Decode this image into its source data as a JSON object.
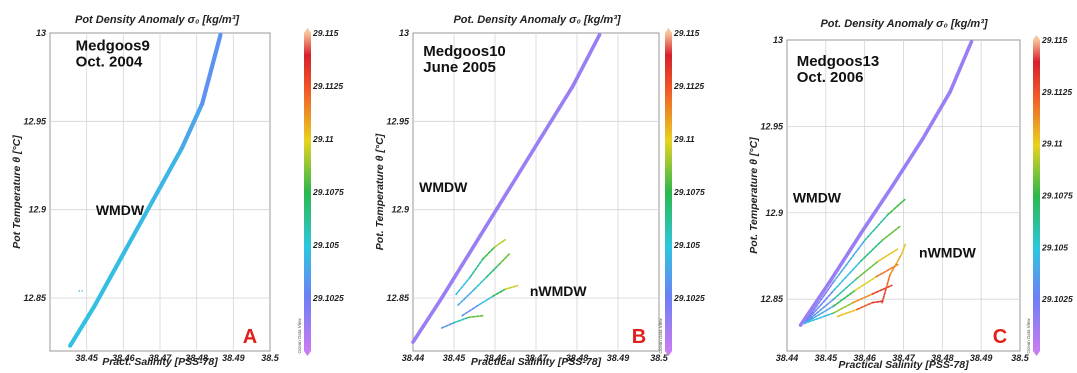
{
  "chart_data": [
    {
      "type": "scatter",
      "panel_letter": "A",
      "title": "Pot Density Anomaly σ₀ [kg/m³]",
      "xlabel": "Pract. Salinity [PSS-78]",
      "ylabel": "Pot Temperature θ [°C]",
      "xlim": [
        38.44,
        38.5
      ],
      "ylim": [
        12.82,
        13
      ],
      "xticks": [
        "38.45",
        "38.46",
        "38.47",
        "38.48",
        "38.49",
        "38.5"
      ],
      "yticks": [
        "12.85",
        "12.9",
        "12.95",
        "13"
      ],
      "grid": true,
      "colorbar": {
        "min": 29.1,
        "max": 29.115,
        "ticks": [
          "29.1025",
          "29.105",
          "29.1075",
          "29.11",
          "29.1125",
          "29.115"
        ],
        "watermark": "Ocean Data View"
      },
      "annotations": [
        {
          "text": "Medgoos9\nOct. 2004",
          "x": 38.447,
          "y": 12.99
        },
        {
          "text": "WMDW",
          "x": 38.4525,
          "y": 12.897
        }
      ],
      "series": [
        {
          "kind": "line",
          "values_x": [
            38.4455,
            38.452,
            38.46,
            38.468,
            38.476,
            38.4815,
            38.4865
          ],
          "values_y": [
            12.823,
            12.845,
            12.875,
            12.905,
            12.935,
            12.96,
            12.999
          ],
          "sigma": [
            29.1048,
            29.1047,
            29.1046,
            29.1045,
            29.1042,
            29.1035,
            29.1028
          ]
        },
        {
          "kind": "points",
          "values_x": [
            38.448,
            38.4488
          ],
          "values_y": [
            12.854,
            12.854
          ],
          "sigma": [
            29.1045,
            29.1045
          ]
        }
      ]
    },
    {
      "type": "scatter",
      "panel_letter": "B",
      "title": "Pot. Density Anomaly σ₀ [kg/m³]",
      "xlabel": "Practical Salinity [PSS-78]",
      "ylabel": "Pot. Temperature θ [°C]",
      "xlim": [
        38.44,
        38.5
      ],
      "ylim": [
        12.82,
        13
      ],
      "xticks": [
        "38.44",
        "38.45",
        "38.46",
        "38.47",
        "38.48",
        "38.49",
        "38.5"
      ],
      "yticks": [
        "12.85",
        "12.9",
        "12.95",
        "13"
      ],
      "grid": true,
      "colorbar": {
        "min": 29.1,
        "max": 29.115,
        "ticks": [
          "29.1025",
          "29.105",
          "29.1075",
          "29.11",
          "29.1125",
          "29.115"
        ],
        "watermark": "Ocean Data View"
      },
      "annotations": [
        {
          "text": "Medgoos10\nJune 2005",
          "x": 38.4425,
          "y": 12.987
        },
        {
          "text": "WMDW",
          "x": 38.4415,
          "y": 12.91
        },
        {
          "text": "nWMDW",
          "x": 38.4685,
          "y": 12.851
        }
      ],
      "series": [
        {
          "kind": "line",
          "values_x": [
            38.44,
            38.447,
            38.455,
            38.463,
            38.471,
            38.479,
            38.4855
          ],
          "values_y": [
            12.825,
            12.85,
            12.88,
            12.91,
            12.94,
            12.97,
            12.999
          ],
          "sigma": [
            29.1013,
            29.1013,
            29.1013,
            29.1013,
            29.1013,
            29.1013,
            29.1013
          ]
        },
        {
          "kind": "curve",
          "values_x": [
            38.4505,
            38.454,
            38.457,
            38.46,
            38.4625
          ],
          "values_y": [
            12.852,
            12.862,
            12.872,
            12.879,
            12.883
          ],
          "sigma": [
            29.1038,
            29.1055,
            29.107,
            29.1085,
            29.11
          ]
        },
        {
          "kind": "curve",
          "values_x": [
            38.451,
            38.455,
            38.458,
            38.461,
            38.4635
          ],
          "values_y": [
            12.846,
            12.855,
            12.862,
            12.869,
            12.875
          ],
          "sigma": [
            29.103,
            29.1048,
            29.106,
            29.1075,
            29.109
          ]
        },
        {
          "kind": "curve",
          "values_x": [
            38.452,
            38.456,
            38.4595,
            38.4625,
            38.4655
          ],
          "values_y": [
            12.84,
            12.846,
            12.851,
            12.855,
            12.857
          ],
          "sigma": [
            29.1025,
            29.1035,
            29.1058,
            29.1085,
            29.1105
          ]
        },
        {
          "kind": "curve",
          "values_x": [
            38.447,
            38.45,
            38.4535,
            38.457
          ],
          "values_y": [
            12.833,
            12.836,
            12.839,
            12.84
          ],
          "sigma": [
            29.1022,
            29.1045,
            29.107,
            29.1095
          ]
        }
      ]
    },
    {
      "type": "scatter",
      "panel_letter": "C",
      "title": "Pot. Density Anomaly σ₀ [kg/m³]",
      "xlabel": "Practical Salinity [PSS-78]",
      "ylabel": "Pot. Temperature θ [°C]",
      "xlim": [
        38.44,
        38.5
      ],
      "ylim": [
        12.82,
        13
      ],
      "xticks": [
        "38.44",
        "38.45",
        "38.46",
        "38.47",
        "38.48",
        "38.49",
        "38.5"
      ],
      "yticks": [
        "12.85",
        "12.9",
        "12.95",
        "13"
      ],
      "grid": true,
      "colorbar": {
        "min": 29.1,
        "max": 29.115,
        "ticks": [
          "29.1025",
          "29.105",
          "29.1075",
          "29.11",
          "29.1125",
          "29.115"
        ],
        "watermark": "Ocean Data View"
      },
      "annotations": [
        {
          "text": "Medgoos13\nOct. 2006",
          "x": 38.4425,
          "y": 12.985
        },
        {
          "text": "WMDW",
          "x": 38.4415,
          "y": 12.906
        },
        {
          "text": "nWMDW",
          "x": 38.474,
          "y": 12.874
        }
      ],
      "series": [
        {
          "kind": "line",
          "values_x": [
            38.4435,
            38.451,
            38.459,
            38.467,
            38.475,
            38.482,
            38.4875
          ],
          "values_y": [
            12.835,
            12.86,
            12.888,
            12.915,
            12.943,
            12.97,
            12.999
          ],
          "sigma": [
            29.1013,
            29.1013,
            29.1013,
            29.1013,
            29.1013,
            29.1013,
            29.1013
          ]
        },
        {
          "kind": "curve",
          "values_x": [
            38.4445,
            38.452,
            38.46,
            38.466,
            38.4705
          ],
          "values_y": [
            12.836,
            12.86,
            12.884,
            12.899,
            12.908
          ],
          "sigma": [
            29.1018,
            29.103,
            29.105,
            29.107,
            29.1085
          ]
        },
        {
          "kind": "curve",
          "values_x": [
            38.4445,
            38.452,
            38.459,
            38.4645,
            38.469
          ],
          "values_y": [
            12.836,
            12.855,
            12.872,
            12.884,
            12.892
          ],
          "sigma": [
            29.1018,
            29.1035,
            29.1058,
            29.1075,
            29.109
          ]
        },
        {
          "kind": "curve",
          "values_x": [
            38.4445,
            38.452,
            38.458,
            38.4635,
            38.4685
          ],
          "values_y": [
            12.836,
            12.85,
            12.862,
            12.872,
            12.879
          ],
          "sigma": [
            29.1018,
            29.1045,
            29.107,
            29.1095,
            29.111
          ]
        },
        {
          "kind": "curve",
          "values_x": [
            38.4445,
            38.452,
            38.4575,
            38.463,
            38.4685
          ],
          "values_y": [
            12.836,
            12.846,
            12.855,
            12.863,
            12.87
          ],
          "sigma": [
            29.1018,
            29.106,
            29.1085,
            29.111,
            29.1125
          ]
        },
        {
          "kind": "curve",
          "values_x": [
            38.4445,
            38.452,
            38.457,
            38.462,
            38.467
          ],
          "values_y": [
            12.836,
            12.842,
            12.848,
            12.853,
            12.858
          ],
          "sigma": [
            29.1018,
            29.1075,
            29.11,
            29.1125,
            29.1135
          ]
        },
        {
          "kind": "curve",
          "values_x": [
            38.453,
            38.458,
            38.462,
            38.465
          ],
          "values_y": [
            12.84,
            12.844,
            12.848,
            12.849
          ],
          "sigma": [
            29.109,
            29.1115,
            29.113,
            29.114
          ]
        },
        {
          "kind": "curve",
          "values_x": [
            38.4645,
            38.4655,
            38.4665,
            38.468,
            38.4695,
            38.4705
          ],
          "values_y": [
            12.848,
            12.856,
            12.864,
            12.87,
            12.876,
            12.882
          ],
          "sigma": [
            29.1135,
            29.1125,
            29.1115,
            29.111,
            29.1105,
            29.11
          ]
        }
      ]
    }
  ]
}
